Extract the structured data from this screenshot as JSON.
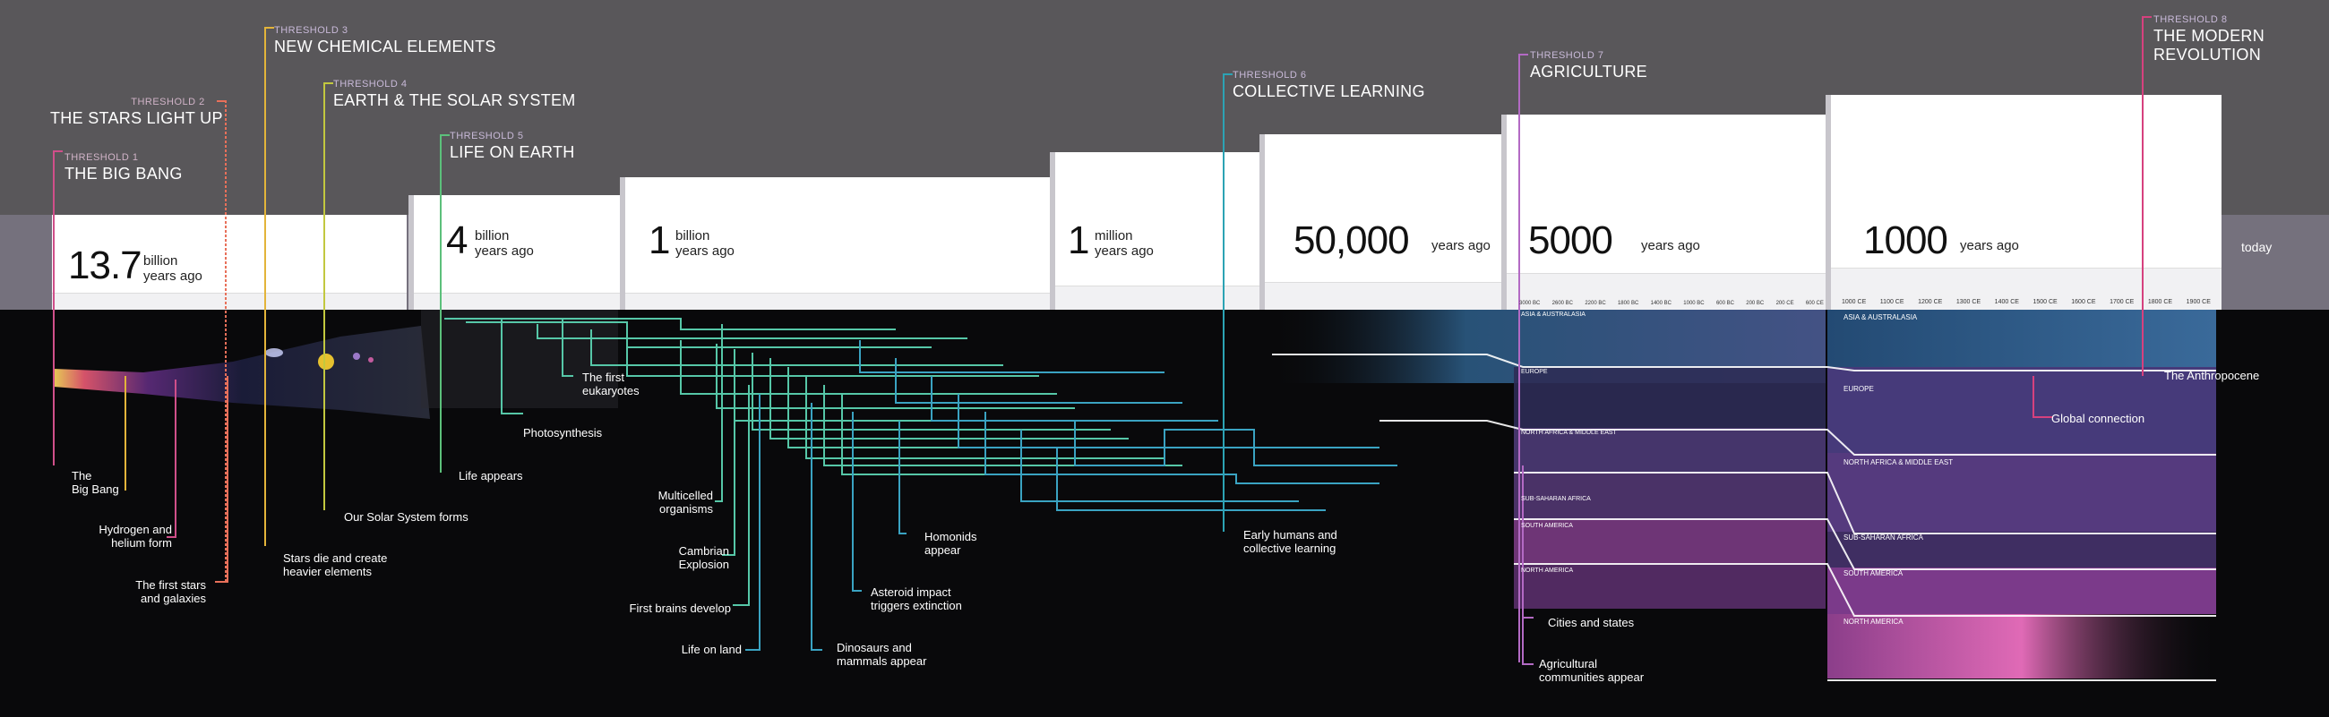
{
  "thresholds": [
    {
      "num": "THRESHOLD 1",
      "name": "THE BIG BANG",
      "color": "#d04f8a"
    },
    {
      "num": "THRESHOLD 2",
      "name": "THE STARS LIGHT UP",
      "color": "#e8705a"
    },
    {
      "num": "THRESHOLD 3",
      "name": "NEW CHEMICAL ELEMENTS",
      "color": "#e3b43a"
    },
    {
      "num": "THRESHOLD 4",
      "name": "EARTH & THE SOLAR SYSTEM",
      "color": "#c2c83f"
    },
    {
      "num": "THRESHOLD 5",
      "name": "LIFE ON EARTH",
      "color": "#5cc07b"
    },
    {
      "num": "THRESHOLD 6",
      "name": "COLLECTIVE LEARNING",
      "color": "#2ca3b4"
    },
    {
      "num": "THRESHOLD 7",
      "name": "AGRICULTURE",
      "color": "#b36ac4"
    },
    {
      "num": "THRESHOLD 8",
      "name": "THE MODERN REVOLUTION",
      "color": "#d6417e"
    }
  ],
  "panels": [
    {
      "big": "13.7",
      "unit1": "billion",
      "unit2": "years ago"
    },
    {
      "big": "4",
      "unit1": "billion",
      "unit2": "years ago"
    },
    {
      "big": "1",
      "unit1": "billion",
      "unit2": "years ago"
    },
    {
      "big": "1",
      "unit1": "million",
      "unit2": "years ago"
    },
    {
      "big": "50,000",
      "unit1": "",
      "unit2": "years ago"
    },
    {
      "big": "5000",
      "unit1": "",
      "unit2": "years ago"
    },
    {
      "big": "1000",
      "unit1": "",
      "unit2": "years ago"
    }
  ],
  "today": "today",
  "events": [
    {
      "text": "The\nBig Bang"
    },
    {
      "text": "Hydrogen and\nhelium form"
    },
    {
      "text": "The first stars\nand galaxies"
    },
    {
      "text": "Stars die and create\nheavier elements"
    },
    {
      "text": "Our Solar System forms"
    },
    {
      "text": "Life appears"
    },
    {
      "text": "Photosynthesis"
    },
    {
      "text": "The first\neukaryotes"
    },
    {
      "text": "Multicelled\norganisms"
    },
    {
      "text": "Cambrian\nExplosion"
    },
    {
      "text": "First brains develop"
    },
    {
      "text": "Life on land"
    },
    {
      "text": "Dinosaurs and\nmammals appear"
    },
    {
      "text": "Asteroid impact\ntriggers extinction"
    },
    {
      "text": "Homonids\nappear"
    },
    {
      "text": "Early humans and\ncollective learning"
    },
    {
      "text": "Cities and states"
    },
    {
      "text": "Agricultural\ncommunities appear"
    },
    {
      "text": "Global connection"
    },
    {
      "text": "The Anthropocene"
    }
  ],
  "regions_left": [
    "ASIA & AUSTRALASIA",
    "EUROPE",
    "NORTH AFRICA & MIDDLE EAST",
    "SUB-SAHARAN AFRICA",
    "SOUTH AMERICA",
    "NORTH AMERICA"
  ],
  "regions_right": [
    "ASIA & AUSTRALASIA",
    "EUROPE",
    "NORTH AFRICA & MIDDLE EAST",
    "SUB-SAHARAN AFRICA",
    "SOUTH AMERICA",
    "NORTH AMERICA"
  ],
  "ticks_5000": [
    "3000 BC",
    "2600 BC",
    "2200 BC",
    "1800 BC",
    "1400 BC",
    "1000 BC",
    "600 BC",
    "200 BC",
    "200 CE",
    "600 CE"
  ],
  "ticks_1000": [
    "1000 CE",
    "1100 CE",
    "1200 CE",
    "1300 CE",
    "1400 CE",
    "1500 CE",
    "1600 CE",
    "1700 CE",
    "1800 CE",
    "1900 CE"
  ],
  "colors": {
    "teal": "#2ca3b4",
    "green": "#3fbf8a",
    "pink": "#e05aa5",
    "purple": "#8a5bb8"
  }
}
